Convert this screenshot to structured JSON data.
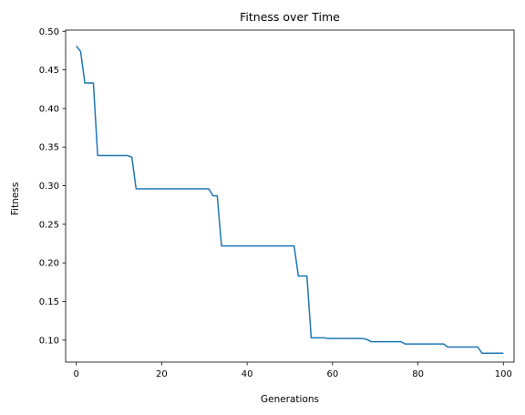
{
  "chart_data": {
    "type": "line",
    "title": "Fitness over Time",
    "xlabel": "Generations",
    "ylabel": "Fitness",
    "xlim": [
      -2.5,
      102.5
    ],
    "ylim": [
      0.0715,
      0.5015
    ],
    "x_ticks": [
      0,
      20,
      40,
      60,
      80,
      100
    ],
    "y_ticks": [
      0.1,
      0.15,
      0.2,
      0.25,
      0.3,
      0.35,
      0.4,
      0.45,
      0.5
    ],
    "x_tick_labels": [
      "0",
      "20",
      "40",
      "60",
      "80",
      "100"
    ],
    "y_tick_labels": [
      "0.10",
      "0.15",
      "0.20",
      "0.25",
      "0.30",
      "0.35",
      "0.40",
      "0.45",
      "0.50"
    ],
    "grid": false,
    "line_color": "#1f77b4",
    "series": [
      {
        "x": [
          0,
          1,
          2,
          3,
          4,
          5,
          6,
          7,
          8,
          9,
          10,
          11,
          12,
          13,
          14,
          15,
          16,
          17,
          18,
          19,
          20,
          21,
          22,
          23,
          24,
          25,
          26,
          27,
          28,
          29,
          30,
          31,
          32,
          33,
          34,
          35,
          36,
          37,
          38,
          39,
          40,
          41,
          42,
          43,
          44,
          45,
          46,
          47,
          48,
          49,
          50,
          51,
          52,
          53,
          54,
          55,
          56,
          57,
          58,
          59,
          60,
          61,
          62,
          63,
          64,
          65,
          66,
          67,
          68,
          69,
          70,
          71,
          72,
          73,
          74,
          75,
          76,
          77,
          78,
          79,
          80,
          81,
          82,
          83,
          84,
          85,
          86,
          87,
          88,
          89,
          90,
          91,
          92,
          93,
          94,
          95,
          96,
          97,
          98,
          99,
          100
        ],
        "values": [
          0.481,
          0.474,
          0.433,
          0.433,
          0.433,
          0.339,
          0.339,
          0.339,
          0.339,
          0.339,
          0.339,
          0.339,
          0.339,
          0.337,
          0.296,
          0.296,
          0.296,
          0.296,
          0.296,
          0.296,
          0.296,
          0.296,
          0.296,
          0.296,
          0.296,
          0.296,
          0.296,
          0.296,
          0.296,
          0.296,
          0.296,
          0.296,
          0.287,
          0.287,
          0.222,
          0.222,
          0.222,
          0.222,
          0.222,
          0.222,
          0.222,
          0.222,
          0.222,
          0.222,
          0.222,
          0.222,
          0.222,
          0.222,
          0.222,
          0.222,
          0.222,
          0.222,
          0.183,
          0.183,
          0.183,
          0.103,
          0.103,
          0.103,
          0.103,
          0.102,
          0.102,
          0.102,
          0.102,
          0.102,
          0.102,
          0.102,
          0.102,
          0.102,
          0.101,
          0.098,
          0.098,
          0.098,
          0.098,
          0.098,
          0.098,
          0.098,
          0.098,
          0.095,
          0.095,
          0.095,
          0.095,
          0.095,
          0.095,
          0.095,
          0.095,
          0.095,
          0.095,
          0.091,
          0.091,
          0.091,
          0.091,
          0.091,
          0.091,
          0.091,
          0.091,
          0.083,
          0.083,
          0.083,
          0.083,
          0.083,
          0.083
        ]
      }
    ]
  }
}
